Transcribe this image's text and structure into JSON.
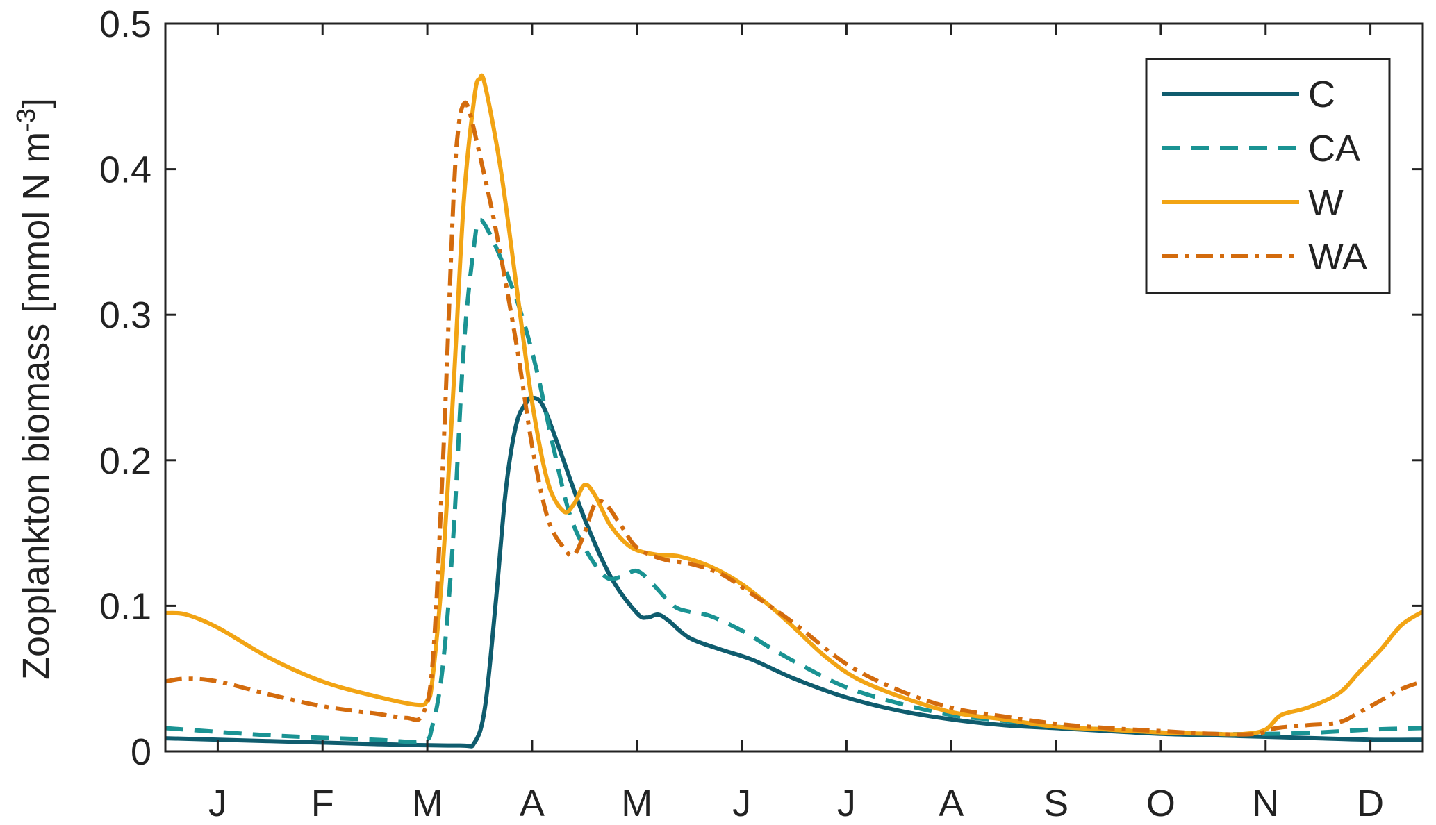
{
  "chart_data": {
    "type": "line",
    "xlabel": "",
    "ylabel": "Zooplankton biomass [mmol N m",
    "ylabel_sup": "-3",
    "ylabel_end": "]",
    "xlim": [
      0,
      12
    ],
    "ylim": [
      0,
      0.5
    ],
    "x_ticks": [
      {
        "x": 0.5,
        "label": "J"
      },
      {
        "x": 1.5,
        "label": "F"
      },
      {
        "x": 2.5,
        "label": "M"
      },
      {
        "x": 3.5,
        "label": "A"
      },
      {
        "x": 4.5,
        "label": "M"
      },
      {
        "x": 5.5,
        "label": "J"
      },
      {
        "x": 6.5,
        "label": "J"
      },
      {
        "x": 7.5,
        "label": "A"
      },
      {
        "x": 8.5,
        "label": "S"
      },
      {
        "x": 9.5,
        "label": "O"
      },
      {
        "x": 10.5,
        "label": "N"
      },
      {
        "x": 11.5,
        "label": "D"
      }
    ],
    "y_ticks": [
      {
        "y": 0,
        "label": "0"
      },
      {
        "y": 0.1,
        "label": "0.1"
      },
      {
        "y": 0.2,
        "label": "0.2"
      },
      {
        "y": 0.3,
        "label": "0.3"
      },
      {
        "y": 0.4,
        "label": "0.4"
      },
      {
        "y": 0.5,
        "label": "0.5"
      }
    ],
    "grid": false,
    "legend_position": "top-right",
    "series": [
      {
        "name": "C",
        "color": "#0f5c6e",
        "dash": "solid",
        "points": [
          [
            0,
            0.009
          ],
          [
            1,
            0.007
          ],
          [
            2,
            0.005
          ],
          [
            2.8,
            0.004
          ],
          [
            2.95,
            0.006
          ],
          [
            3.05,
            0.03
          ],
          [
            3.15,
            0.1
          ],
          [
            3.25,
            0.18
          ],
          [
            3.35,
            0.225
          ],
          [
            3.45,
            0.24
          ],
          [
            3.5,
            0.243
          ],
          [
            3.6,
            0.238
          ],
          [
            3.75,
            0.21
          ],
          [
            4.0,
            0.16
          ],
          [
            4.25,
            0.12
          ],
          [
            4.5,
            0.095
          ],
          [
            4.6,
            0.092
          ],
          [
            4.7,
            0.094
          ],
          [
            4.8,
            0.09
          ],
          [
            5.0,
            0.078
          ],
          [
            5.3,
            0.07
          ],
          [
            5.6,
            0.063
          ],
          [
            6.0,
            0.05
          ],
          [
            6.5,
            0.037
          ],
          [
            7.0,
            0.028
          ],
          [
            7.5,
            0.022
          ],
          [
            8.0,
            0.018
          ],
          [
            8.5,
            0.016
          ],
          [
            9.0,
            0.014
          ],
          [
            9.5,
            0.012
          ],
          [
            10.0,
            0.011
          ],
          [
            10.5,
            0.01
          ],
          [
            11.0,
            0.009
          ],
          [
            11.5,
            0.008
          ],
          [
            12,
            0.008
          ]
        ]
      },
      {
        "name": "CA",
        "color": "#1a9393",
        "dash": "dashed",
        "points": [
          [
            0,
            0.016
          ],
          [
            1,
            0.011
          ],
          [
            2,
            0.008
          ],
          [
            2.45,
            0.007
          ],
          [
            2.55,
            0.018
          ],
          [
            2.65,
            0.06
          ],
          [
            2.75,
            0.15
          ],
          [
            2.85,
            0.28
          ],
          [
            2.95,
            0.35
          ],
          [
            3.0,
            0.365
          ],
          [
            3.1,
            0.355
          ],
          [
            3.25,
            0.33
          ],
          [
            3.4,
            0.3
          ],
          [
            3.55,
            0.26
          ],
          [
            3.7,
            0.21
          ],
          [
            3.85,
            0.165
          ],
          [
            4.0,
            0.14
          ],
          [
            4.2,
            0.12
          ],
          [
            4.35,
            0.12
          ],
          [
            4.5,
            0.124
          ],
          [
            4.65,
            0.115
          ],
          [
            4.85,
            0.1
          ],
          [
            5.0,
            0.096
          ],
          [
            5.2,
            0.093
          ],
          [
            5.5,
            0.083
          ],
          [
            5.8,
            0.07
          ],
          [
            6.1,
            0.058
          ],
          [
            6.5,
            0.044
          ],
          [
            7.0,
            0.033
          ],
          [
            7.5,
            0.025
          ],
          [
            8.0,
            0.021
          ],
          [
            8.5,
            0.017
          ],
          [
            9.0,
            0.015
          ],
          [
            9.5,
            0.013
          ],
          [
            10.0,
            0.012
          ],
          [
            10.5,
            0.012
          ],
          [
            11.0,
            0.013
          ],
          [
            11.5,
            0.015
          ],
          [
            12,
            0.016
          ]
        ]
      },
      {
        "name": "W",
        "color": "#f2a414",
        "dash": "solid",
        "points": [
          [
            0,
            0.095
          ],
          [
            0.2,
            0.094
          ],
          [
            0.5,
            0.085
          ],
          [
            1.0,
            0.064
          ],
          [
            1.5,
            0.048
          ],
          [
            2.0,
            0.038
          ],
          [
            2.4,
            0.032
          ],
          [
            2.5,
            0.035
          ],
          [
            2.55,
            0.05
          ],
          [
            2.65,
            0.13
          ],
          [
            2.75,
            0.25
          ],
          [
            2.85,
            0.38
          ],
          [
            2.95,
            0.45
          ],
          [
            3.0,
            0.462
          ],
          [
            3.05,
            0.458
          ],
          [
            3.2,
            0.4
          ],
          [
            3.35,
            0.32
          ],
          [
            3.5,
            0.24
          ],
          [
            3.65,
            0.185
          ],
          [
            3.8,
            0.165
          ],
          [
            3.9,
            0.17
          ],
          [
            4.0,
            0.183
          ],
          [
            4.1,
            0.176
          ],
          [
            4.25,
            0.155
          ],
          [
            4.45,
            0.14
          ],
          [
            4.7,
            0.135
          ],
          [
            4.9,
            0.134
          ],
          [
            5.2,
            0.127
          ],
          [
            5.5,
            0.115
          ],
          [
            5.8,
            0.098
          ],
          [
            6.0,
            0.085
          ],
          [
            6.3,
            0.065
          ],
          [
            6.6,
            0.05
          ],
          [
            7.0,
            0.038
          ],
          [
            7.5,
            0.027
          ],
          [
            8.0,
            0.022
          ],
          [
            8.5,
            0.017
          ],
          [
            9.0,
            0.015
          ],
          [
            9.5,
            0.013
          ],
          [
            10.0,
            0.012
          ],
          [
            10.3,
            0.012
          ],
          [
            10.5,
            0.015
          ],
          [
            10.65,
            0.025
          ],
          [
            10.9,
            0.03
          ],
          [
            11.2,
            0.04
          ],
          [
            11.4,
            0.055
          ],
          [
            11.6,
            0.07
          ],
          [
            11.8,
            0.087
          ],
          [
            12,
            0.096
          ]
        ]
      },
      {
        "name": "WA",
        "color": "#d36b0d",
        "dash": "dashdot",
        "points": [
          [
            0,
            0.048
          ],
          [
            0.2,
            0.05
          ],
          [
            0.5,
            0.048
          ],
          [
            1.0,
            0.039
          ],
          [
            1.5,
            0.031
          ],
          [
            2.0,
            0.026
          ],
          [
            2.3,
            0.023
          ],
          [
            2.45,
            0.025
          ],
          [
            2.55,
            0.06
          ],
          [
            2.65,
            0.2
          ],
          [
            2.75,
            0.38
          ],
          [
            2.8,
            0.43
          ],
          [
            2.85,
            0.445
          ],
          [
            2.9,
            0.44
          ],
          [
            3.0,
            0.41
          ],
          [
            3.15,
            0.36
          ],
          [
            3.35,
            0.28
          ],
          [
            3.5,
            0.21
          ],
          [
            3.65,
            0.16
          ],
          [
            3.8,
            0.14
          ],
          [
            3.9,
            0.135
          ],
          [
            4.0,
            0.15
          ],
          [
            4.1,
            0.17
          ],
          [
            4.2,
            0.17
          ],
          [
            4.35,
            0.155
          ],
          [
            4.5,
            0.14
          ],
          [
            4.75,
            0.132
          ],
          [
            5.0,
            0.129
          ],
          [
            5.3,
            0.122
          ],
          [
            5.6,
            0.108
          ],
          [
            6.0,
            0.088
          ],
          [
            6.5,
            0.06
          ],
          [
            7.0,
            0.042
          ],
          [
            7.5,
            0.03
          ],
          [
            8.0,
            0.024
          ],
          [
            8.5,
            0.019
          ],
          [
            9.0,
            0.016
          ],
          [
            9.5,
            0.014
          ],
          [
            10.0,
            0.012
          ],
          [
            10.4,
            0.012
          ],
          [
            10.6,
            0.016
          ],
          [
            10.9,
            0.018
          ],
          [
            11.2,
            0.02
          ],
          [
            11.4,
            0.027
          ],
          [
            11.6,
            0.035
          ],
          [
            11.8,
            0.043
          ],
          [
            12,
            0.048
          ]
        ]
      }
    ]
  }
}
